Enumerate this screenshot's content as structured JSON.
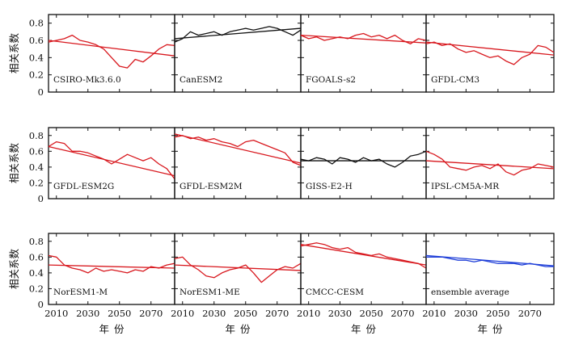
{
  "figure": {
    "ylabel": "相关系数",
    "xlabel": "年份"
  },
  "chart_data": {
    "type": "line",
    "grid": false,
    "ylim": [
      0,
      0.9
    ],
    "yticks": [
      0,
      0.2,
      0.4,
      0.6,
      0.8
    ],
    "xlim": [
      2005,
      2085
    ],
    "xticks": [
      2010,
      2030,
      2050,
      2070
    ],
    "colors": {
      "red": "#d8181e",
      "black": "#111111",
      "blue": "#1f3fd8"
    },
    "panels": [
      {
        "label": "CSIRO-Mk3.6.0",
        "color": "red",
        "x": [
          2005,
          2010,
          2015,
          2020,
          2025,
          2030,
          2035,
          2040,
          2045,
          2050,
          2055,
          2060,
          2065,
          2070,
          2075,
          2080,
          2085
        ],
        "values": [
          0.58,
          0.6,
          0.62,
          0.66,
          0.6,
          0.58,
          0.55,
          0.5,
          0.4,
          0.3,
          0.28,
          0.38,
          0.35,
          0.42,
          0.5,
          0.55,
          0.54
        ],
        "trend": [
          0.6,
          0.42
        ]
      },
      {
        "label": "CanESM2",
        "color": "black",
        "x": [
          2005,
          2010,
          2015,
          2020,
          2025,
          2030,
          2035,
          2040,
          2045,
          2050,
          2055,
          2060,
          2065,
          2070,
          2075,
          2080,
          2085
        ],
        "values": [
          0.58,
          0.62,
          0.7,
          0.66,
          0.68,
          0.7,
          0.66,
          0.7,
          0.72,
          0.74,
          0.72,
          0.74,
          0.76,
          0.74,
          0.7,
          0.66,
          0.72
        ],
        "trend": [
          0.62,
          0.74
        ]
      },
      {
        "label": "FGOALS-s2",
        "color": "red",
        "x": [
          2005,
          2010,
          2015,
          2020,
          2025,
          2030,
          2035,
          2040,
          2045,
          2050,
          2055,
          2060,
          2065,
          2070,
          2075,
          2080,
          2085
        ],
        "values": [
          0.66,
          0.62,
          0.64,
          0.6,
          0.62,
          0.64,
          0.62,
          0.66,
          0.68,
          0.64,
          0.66,
          0.62,
          0.66,
          0.6,
          0.56,
          0.62,
          0.6
        ],
        "trend": [
          0.66,
          0.57
        ]
      },
      {
        "label": "GFDL-CM3",
        "color": "red",
        "x": [
          2005,
          2010,
          2015,
          2020,
          2025,
          2030,
          2035,
          2040,
          2045,
          2050,
          2055,
          2060,
          2065,
          2070,
          2075,
          2080,
          2085
        ],
        "values": [
          0.56,
          0.58,
          0.54,
          0.56,
          0.5,
          0.46,
          0.48,
          0.44,
          0.4,
          0.42,
          0.36,
          0.32,
          0.4,
          0.44,
          0.54,
          0.52,
          0.46
        ],
        "trend": [
          0.58,
          0.43
        ]
      },
      {
        "label": "GFDL-ESM2G",
        "color": "red",
        "x": [
          2005,
          2010,
          2015,
          2020,
          2025,
          2030,
          2035,
          2040,
          2045,
          2050,
          2055,
          2060,
          2065,
          2070,
          2075,
          2080,
          2085
        ],
        "values": [
          0.66,
          0.72,
          0.7,
          0.6,
          0.6,
          0.58,
          0.54,
          0.5,
          0.44,
          0.5,
          0.56,
          0.52,
          0.48,
          0.52,
          0.44,
          0.38,
          0.25
        ],
        "trend": [
          0.66,
          0.29
        ]
      },
      {
        "label": "GFDL-ESM2M",
        "color": "red",
        "x": [
          2005,
          2010,
          2015,
          2020,
          2025,
          2030,
          2035,
          2040,
          2045,
          2050,
          2055,
          2060,
          2065,
          2070,
          2075,
          2080,
          2085
        ],
        "values": [
          0.78,
          0.8,
          0.76,
          0.78,
          0.74,
          0.76,
          0.72,
          0.7,
          0.66,
          0.72,
          0.74,
          0.7,
          0.66,
          0.62,
          0.58,
          0.46,
          0.42
        ],
        "trend": [
          0.82,
          0.45
        ]
      },
      {
        "label": "GISS-E2-H",
        "color": "black",
        "x": [
          2005,
          2010,
          2015,
          2020,
          2025,
          2030,
          2035,
          2040,
          2045,
          2050,
          2055,
          2060,
          2065,
          2070,
          2075,
          2080,
          2085
        ],
        "values": [
          0.5,
          0.48,
          0.52,
          0.5,
          0.44,
          0.52,
          0.5,
          0.46,
          0.52,
          0.48,
          0.5,
          0.44,
          0.4,
          0.46,
          0.54,
          0.56,
          0.6
        ],
        "trend": [
          0.48,
          0.48
        ]
      },
      {
        "label": "IPSL-CM5A-MR",
        "color": "red",
        "x": [
          2005,
          2010,
          2015,
          2020,
          2025,
          2030,
          2035,
          2040,
          2045,
          2050,
          2055,
          2060,
          2065,
          2070,
          2075,
          2080,
          2085
        ],
        "values": [
          0.6,
          0.56,
          0.5,
          0.4,
          0.38,
          0.36,
          0.4,
          0.42,
          0.38,
          0.44,
          0.34,
          0.3,
          0.36,
          0.38,
          0.44,
          0.42,
          0.4
        ],
        "trend": [
          0.48,
          0.38
        ]
      },
      {
        "label": "NorESM1-M",
        "color": "red",
        "x": [
          2005,
          2010,
          2015,
          2020,
          2025,
          2030,
          2035,
          2040,
          2045,
          2050,
          2055,
          2060,
          2065,
          2070,
          2075,
          2080,
          2085
        ],
        "values": [
          0.62,
          0.6,
          0.5,
          0.46,
          0.44,
          0.4,
          0.46,
          0.42,
          0.44,
          0.42,
          0.4,
          0.44,
          0.42,
          0.48,
          0.46,
          0.5,
          0.52
        ],
        "trend": [
          0.5,
          0.46
        ]
      },
      {
        "label": "NorESM1-ME",
        "color": "red",
        "x": [
          2005,
          2010,
          2015,
          2020,
          2025,
          2030,
          2035,
          2040,
          2045,
          2050,
          2055,
          2060,
          2065,
          2070,
          2075,
          2080,
          2085
        ],
        "values": [
          0.58,
          0.6,
          0.5,
          0.44,
          0.36,
          0.34,
          0.4,
          0.44,
          0.46,
          0.5,
          0.4,
          0.28,
          0.36,
          0.44,
          0.48,
          0.46,
          0.52
        ],
        "trend": [
          0.5,
          0.43
        ]
      },
      {
        "label": "CMCC-CESM",
        "color": "red",
        "x": [
          2005,
          2010,
          2015,
          2020,
          2025,
          2030,
          2035,
          2040,
          2045,
          2050,
          2055,
          2060,
          2065,
          2070,
          2075,
          2080,
          2085
        ],
        "values": [
          0.74,
          0.76,
          0.78,
          0.76,
          0.72,
          0.7,
          0.72,
          0.66,
          0.64,
          0.62,
          0.64,
          0.6,
          0.58,
          0.56,
          0.54,
          0.52,
          0.46
        ],
        "trend": [
          0.76,
          0.5
        ]
      },
      {
        "label": "ensemble average",
        "color": "blue",
        "x": [
          2005,
          2010,
          2015,
          2020,
          2025,
          2030,
          2035,
          2040,
          2045,
          2050,
          2055,
          2060,
          2065,
          2070,
          2075,
          2080,
          2085
        ],
        "values": [
          0.6,
          0.6,
          0.6,
          0.58,
          0.56,
          0.56,
          0.54,
          0.56,
          0.54,
          0.52,
          0.52,
          0.52,
          0.5,
          0.52,
          0.5,
          0.48,
          0.48
        ],
        "trend": [
          0.62,
          0.49
        ]
      }
    ]
  }
}
